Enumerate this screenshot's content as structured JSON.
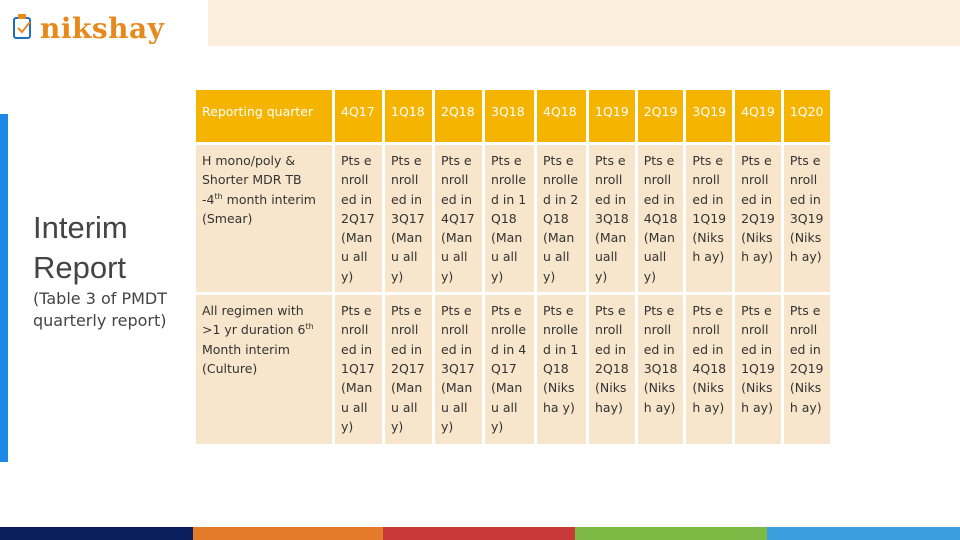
{
  "logo": {
    "text": "nikshay",
    "brand_color": "#e8891c"
  },
  "side": {
    "title": "Interim Report",
    "subtitle": "(Table 3 of PMDT quarterly report)"
  },
  "colors": {
    "header": "#f4b400",
    "cell": "#f8e6cc",
    "accent": "#1e88e5",
    "stripes": [
      "#0b1f5c",
      "#e37b2a",
      "#c83a3a",
      "#7dba45",
      "#3aa0dd"
    ]
  },
  "table": {
    "header": [
      "Reporting quarter",
      "4Q17",
      "1Q18",
      "2Q18",
      "3Q18",
      "4Q18",
      "1Q19",
      "2Q19",
      "3Q19",
      "4Q19",
      "1Q20"
    ],
    "row1": {
      "label_pre": "H mono/poly & Shorter MDR TB -4",
      "label_sup": "th",
      "label_post": " month interim (Smear)",
      "cells": [
        "Pts enroll ed in 2Q17 (Manu ally)",
        "Pts enroll ed in 3Q17 (Manu ally)",
        "Pts enroll ed in 4Q17 (Manu ally)",
        "Pts enrolle d in 1Q18 (Manu ally)",
        "Pts enrolle d in 2Q18 (Manu ally)",
        "Pts enroll ed in 3Q18 (Man ually)",
        "Pts enroll ed in 4Q18 (Man ually)",
        "Pts enroll ed in 1Q19 (Niksh ay)",
        "Pts enroll ed in 2Q19 (Niksh ay)",
        "Pts enroll ed in 3Q19 (Niksh ay)"
      ]
    },
    "row2": {
      "label_pre": "All regimen with >1 yr duration 6",
      "label_sup": "th",
      "label_post": " Month interim (Culture)",
      "cells": [
        "Pts enroll ed in 1Q17 (Manu ally)",
        "Pts enroll ed in 2Q17 (Manu ally)",
        "Pts enroll ed in 3Q17 (Manu ally)",
        "Pts enrolle d in 4Q17 (Manu ally)",
        "Pts enrolle d in 1Q18 (Niksha y)",
        "Pts enroll ed in 2Q18 (Niks hay)",
        "Pts enroll ed in 3Q18 (Niksh ay)",
        "Pts enroll ed in 4Q18 (Niksh ay)",
        "Pts enroll ed in 1Q19 (Niksh ay)",
        "Pts enroll ed in 2Q19 (Niksh ay)"
      ]
    }
  }
}
